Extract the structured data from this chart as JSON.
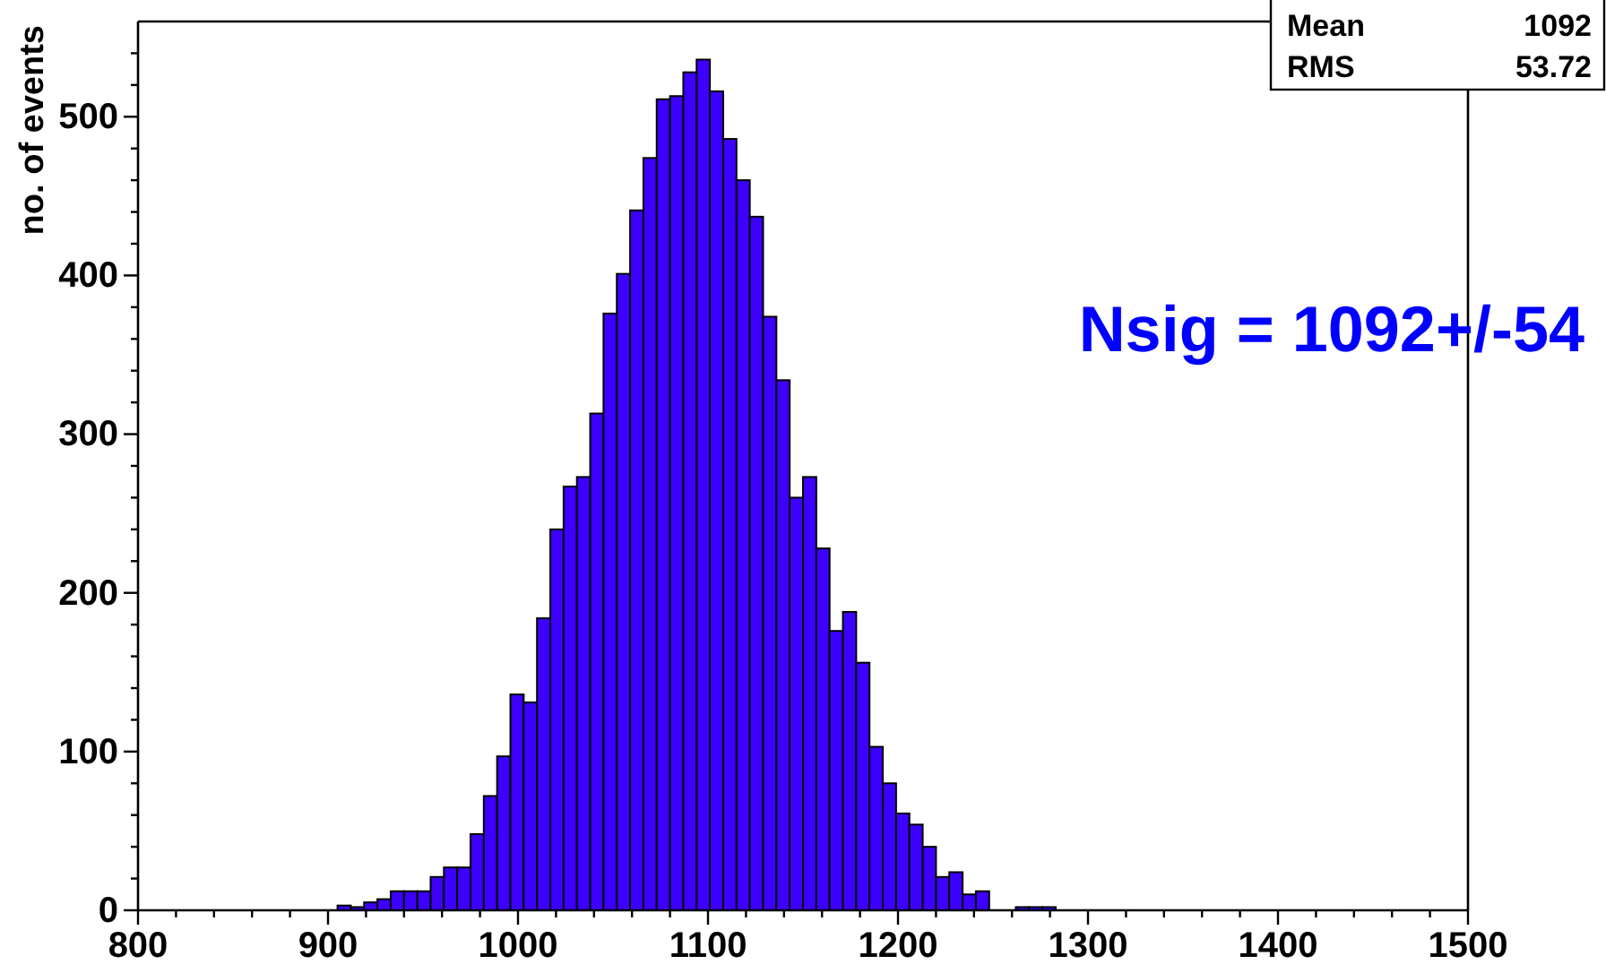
{
  "chart_data": {
    "type": "histogram",
    "ylabel": "no. of events",
    "bins": [
      800,
      807,
      814,
      821,
      828,
      835,
      842,
      849,
      856,
      863,
      870,
      877,
      884,
      891,
      898,
      905,
      912,
      919,
      926,
      933,
      940,
      947,
      954,
      961,
      968,
      975,
      982,
      989,
      996,
      1003,
      1010,
      1017,
      1024,
      1031,
      1038,
      1045,
      1052,
      1059,
      1066,
      1073,
      1080,
      1087,
      1094,
      1101,
      1108,
      1115,
      1122,
      1129,
      1136,
      1143,
      1150,
      1157,
      1164,
      1171,
      1178,
      1185,
      1192,
      1199,
      1206,
      1213,
      1220,
      1227,
      1234,
      1241,
      1248,
      1255,
      1262,
      1269,
      1276,
      1283,
      1290,
      1297,
      1304,
      1311,
      1318,
      1325,
      1332,
      1339,
      1346,
      1353,
      1360,
      1367,
      1374,
      1381,
      1388,
      1395,
      1402,
      1409,
      1416,
      1423,
      1430,
      1437,
      1444,
      1451,
      1458,
      1465,
      1472,
      1479,
      1486,
      1493,
      1500
    ],
    "values": [
      0,
      0,
      0,
      0,
      0,
      0,
      0,
      0,
      0,
      0,
      0,
      0,
      0,
      0,
      0,
      3,
      2,
      5,
      7,
      12,
      12,
      12,
      21,
      27,
      27,
      48,
      72,
      97,
      136,
      131,
      184,
      240,
      267,
      273,
      313,
      376,
      401,
      441,
      474,
      511,
      513,
      528,
      536,
      516,
      486,
      460,
      437,
      374,
      334,
      260,
      273,
      228,
      176,
      188,
      156,
      103,
      80,
      61,
      54,
      40,
      21,
      24,
      10,
      12,
      0,
      0,
      2,
      2,
      2,
      0,
      0,
      0,
      0,
      0,
      0,
      0,
      0,
      0,
      0,
      0,
      0,
      0,
      0,
      0,
      0,
      0,
      0,
      0,
      0,
      0,
      0,
      0,
      0,
      0,
      0,
      0,
      0,
      0,
      0,
      0
    ],
    "color": "#3d00ff",
    "xlim": [
      800,
      1500
    ],
    "xticks": [
      800,
      {
        "value": 820,
        "label": null
      },
      {
        "value": 840,
        "label": null
      },
      {
        "value": 860,
        "label": null
      },
      {
        "value": 880,
        "label": null
      },
      900,
      {
        "value": 920,
        "label": null
      },
      {
        "value": 940,
        "label": null
      },
      {
        "value": 960,
        "label": null
      },
      {
        "value": 980,
        "label": null
      },
      1000,
      {
        "value": 1020,
        "label": null
      },
      {
        "value": 1040,
        "label": null
      },
      {
        "value": 1060,
        "label": null
      },
      {
        "value": 1080,
        "label": null
      },
      1100,
      {
        "value": 1120,
        "label": null
      },
      {
        "value": 1140,
        "label": null
      },
      {
        "value": 1160,
        "label": null
      },
      {
        "value": 1180,
        "label": null
      },
      1200,
      {
        "value": 1220,
        "label": null
      },
      {
        "value": 1240,
        "label": null
      },
      {
        "value": 1260,
        "label": null
      },
      {
        "value": 1280,
        "label": null
      },
      1300,
      {
        "value": 1320,
        "label": null
      },
      {
        "value": 1340,
        "label": null
      },
      {
        "value": 1360,
        "label": null
      },
      {
        "value": 1380,
        "label": null
      },
      1400,
      {
        "value": 1420,
        "label": null
      },
      {
        "value": 1440,
        "label": null
      },
      {
        "value": 1460,
        "label": null
      },
      {
        "value": 1480,
        "label": null
      },
      1500
    ],
    "ylim": [
      0,
      560
    ],
    "yticks": [
      0,
      {
        "value": 20,
        "label": null
      },
      {
        "value": 40,
        "label": null
      },
      {
        "value": 60,
        "label": null
      },
      {
        "value": 80,
        "label": null
      },
      100,
      {
        "value": 120,
        "label": null
      },
      {
        "value": 140,
        "label": null
      },
      {
        "value": 160,
        "label": null
      },
      {
        "value": 180,
        "label": null
      },
      200,
      {
        "value": 220,
        "label": null
      },
      {
        "value": 240,
        "label": null
      },
      {
        "value": 260,
        "label": null
      },
      {
        "value": 280,
        "label": null
      },
      300,
      {
        "value": 320,
        "label": null
      },
      {
        "value": 340,
        "label": null
      },
      {
        "value": 360,
        "label": null
      },
      {
        "value": 380,
        "label": null
      },
      400,
      {
        "value": 420,
        "label": null
      },
      {
        "value": 440,
        "label": null
      },
      {
        "value": 460,
        "label": null
      },
      {
        "value": 480,
        "label": null
      },
      500,
      {
        "value": 520,
        "label": null
      },
      {
        "value": 540,
        "label": null
      }
    ],
    "grid": false,
    "annotations": [
      "Mean",
      "1092",
      "RMS",
      "53.72",
      "Nsig = 1092+/-54"
    ]
  }
}
